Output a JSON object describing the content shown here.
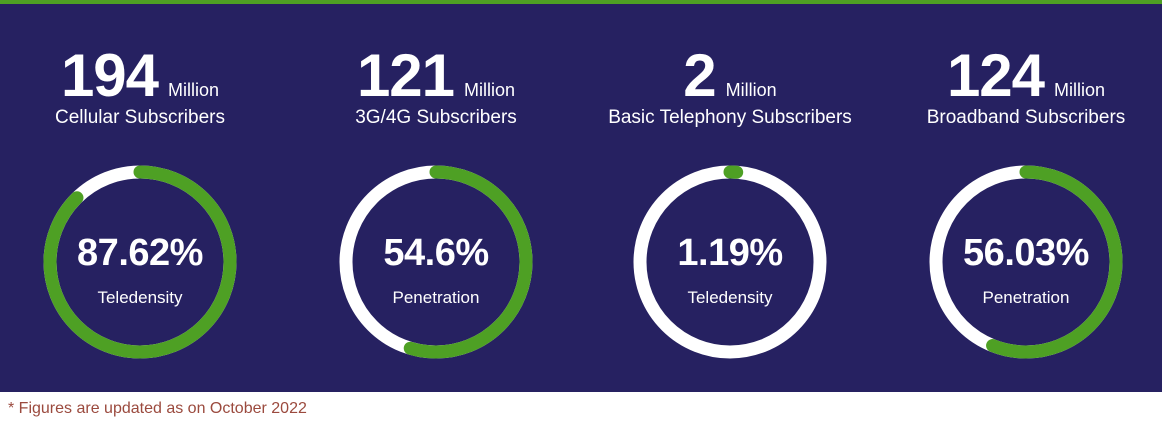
{
  "colors": {
    "accent": "#4ea024",
    "background": "#262161",
    "track": "#ffffff",
    "footnote": "#9b4a3e"
  },
  "stats": [
    {
      "number": "194",
      "unit": "Million",
      "subtitle": "Cellular Subscribers",
      "gauge_value": "87.62%",
      "gauge_label": "Teledensity",
      "gauge_fraction": 0.8762
    },
    {
      "number": "121",
      "unit": "Million",
      "subtitle": "3G/4G Subscribers",
      "gauge_value": "54.6%",
      "gauge_label": "Penetration",
      "gauge_fraction": 0.546
    },
    {
      "number": "2",
      "unit": "Million",
      "subtitle": "Basic Telephony Subscribers",
      "gauge_value": "1.19%",
      "gauge_label": "Teledensity",
      "gauge_fraction": 0.0119
    },
    {
      "number": "124",
      "unit": "Million",
      "subtitle": "Broadband Subscribers",
      "gauge_value": "56.03%",
      "gauge_label": "Penetration",
      "gauge_fraction": 0.5603
    }
  ],
  "footnote": "* Figures are updated as on October 2022"
}
